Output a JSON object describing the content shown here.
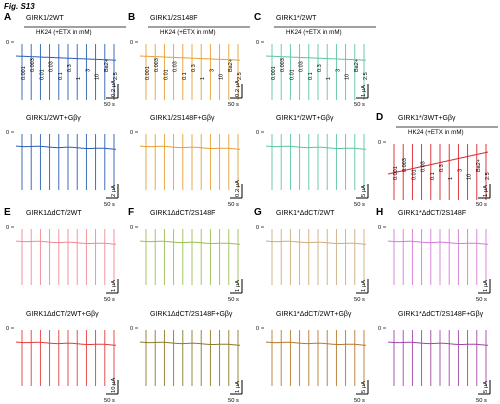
{
  "figure_label": "Fig. S13",
  "trace_colors": {
    "blue": "#2a5fb4",
    "orange": "#e5a135",
    "green": "#5cc6a0",
    "red": "#d8232a",
    "pink": "#f08a92",
    "olive": "#9bbf55",
    "tan": "#cdae7c",
    "magenta": "#d67ad8",
    "crimson": "#e33d3d",
    "brown": "#8c7a2a",
    "copper": "#b5792f",
    "purple": "#a146a6"
  },
  "rows": [
    {
      "panels": [
        {
          "letter": "A",
          "title": "GIRK1/2WT",
          "color": "blue",
          "hk_label": "HK24 (+ETX in mM)",
          "concentrations": [
            "0.001",
            "0.003",
            "0.01",
            "0.03",
            "0.1",
            "0.3",
            "1",
            "3",
            "10",
            "Ba2+",
            "2.5"
          ],
          "scale_current": "0.2 μA",
          "scale_time": "50 s",
          "zero": "0"
        },
        {
          "letter": "B",
          "title": "GIRK1/2S148F",
          "color": "orange",
          "hk_label": "HK24 (+ETX in mM)",
          "concentrations": [
            "0.001",
            "0.003",
            "0.01",
            "0.03",
            "0.1",
            "0.3",
            "1",
            "3",
            "10",
            "Ba2+",
            "2.5"
          ],
          "scale_current": "0.2 μA",
          "scale_time": "50 s",
          "zero": "0"
        },
        {
          "letter": "C",
          "title": "GIRK1*/2WT",
          "color": "green",
          "hk_label": "HK24 (+ETX in mM)",
          "concentrations": [
            "0.001",
            "0.003",
            "0.01",
            "0.03",
            "0.1",
            "0.3",
            "1",
            "3",
            "10",
            "Ba2+",
            "2.5"
          ],
          "scale_current": "1 μA",
          "scale_time": "50 s",
          "zero": "0"
        }
      ]
    },
    {
      "panels": [
        {
          "letter": "",
          "title": "GIRK1/2WT+Gβγ",
          "color": "blue",
          "scale_current": "2 μA",
          "scale_time": "50 s",
          "zero": "0"
        },
        {
          "letter": "",
          "title": "GIRK1/2S148F+Gβγ",
          "color": "orange",
          "scale_current": "0.2 μA",
          "scale_time": "50 s",
          "zero": "0"
        },
        {
          "letter": "",
          "title": "GIRK1*/2WT+Gβγ",
          "color": "green",
          "scale_current": "5 μA",
          "scale_time": "50 s",
          "zero": "0"
        },
        {
          "letter": "D",
          "title": "GIRK1*/3WT+Gβγ",
          "color": "red",
          "hk_label": "HK24 (+ETX in mM)",
          "concentrations": [
            "0.001",
            "0.003",
            "0.01",
            "0.03",
            "0.1",
            "0.3",
            "1",
            "3",
            "10",
            "Ba2+",
            "2.5"
          ],
          "scale_current": "1 μA",
          "scale_time": "50 s",
          "zero": "0"
        }
      ]
    },
    {
      "panels": [
        {
          "letter": "E",
          "title": "GIRK1ΔdCT/2WT",
          "color": "pink",
          "scale_current": "1 μA",
          "scale_time": "50 s",
          "zero": "0"
        },
        {
          "letter": "F",
          "title": "GIRK1ΔdCT/2S148F",
          "color": "olive",
          "scale_current": "1 μA",
          "scale_time": "50 s",
          "zero": "0"
        },
        {
          "letter": "G",
          "title": "GIRK1*ΔdCT/2WT",
          "color": "tan",
          "scale_current": "1 μA",
          "scale_time": "50 s",
          "zero": "0"
        },
        {
          "letter": "H",
          "title": "GIRK1*ΔdCT/2S148F",
          "color": "magenta",
          "scale_current": "1 μA",
          "scale_time": "50 s",
          "zero": "0"
        }
      ]
    },
    {
      "panels": [
        {
          "letter": "",
          "title": "GIRK1ΔdCT/2WT+Gβγ",
          "color": "crimson",
          "scale_current": "10 μA",
          "scale_time": "50 s",
          "zero": "0"
        },
        {
          "letter": "",
          "title": "GIRK1ΔdCT/2S148F+Gβγ",
          "color": "brown",
          "scale_current": "1 μA",
          "scale_time": "50 s",
          "zero": "0"
        },
        {
          "letter": "",
          "title": "GIRK1*ΔdCT/2WT+Gβγ",
          "color": "copper",
          "scale_current": "5 μA",
          "scale_time": "50 s",
          "zero": "0"
        },
        {
          "letter": "",
          "title": "GIRK1*ΔdCT/2S148F+Gβγ",
          "color": "purple",
          "scale_current": "5 μA",
          "scale_time": "50 s",
          "zero": "0"
        }
      ]
    }
  ]
}
